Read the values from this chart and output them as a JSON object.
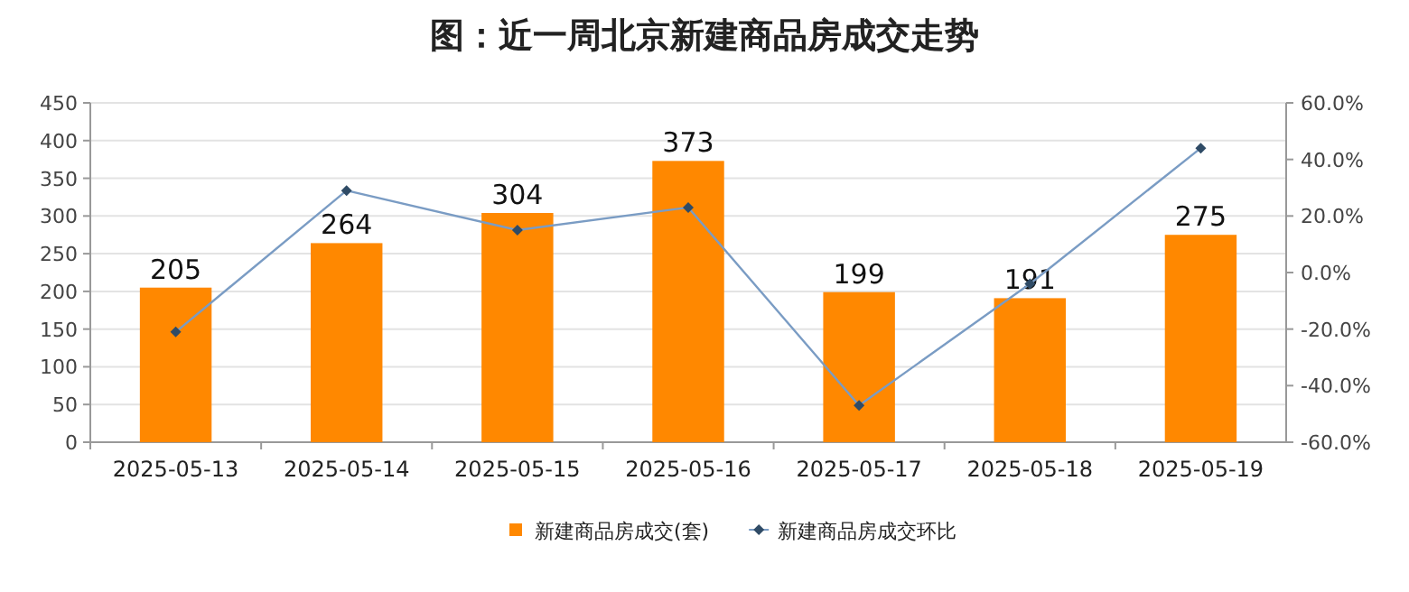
{
  "chart_data": {
    "type": "bar",
    "title": "图：近一周北京新建商品房成交走势",
    "categories": [
      "2025-05-13",
      "2025-05-14",
      "2025-05-15",
      "2025-05-16",
      "2025-05-17",
      "2025-05-18",
      "2025-05-19"
    ],
    "series": [
      {
        "name": "新建商品房成交(套)",
        "color": "#ff8800",
        "values": [
          205,
          264,
          304,
          373,
          199,
          191,
          275
        ],
        "value_labels": [
          "205",
          "264",
          "304",
          "373",
          "199",
          "191",
          "275"
        ]
      },
      {
        "name": "新建商品房成交环比",
        "type": "line",
        "axis": "y2",
        "color": "#7a9cc4",
        "marker": "diamond",
        "values": [
          -21,
          29,
          15,
          23,
          -47,
          -4,
          44
        ]
      }
    ],
    "ylim": [
      0,
      450
    ],
    "yticks": [
      0,
      50,
      100,
      150,
      200,
      250,
      300,
      350,
      400,
      450
    ],
    "y2lim": [
      -60,
      60
    ],
    "y2ticks": [
      {
        "value": -60,
        "label": "-60.0%"
      },
      {
        "value": -40,
        "label": "-40.0%"
      },
      {
        "value": -20,
        "label": "-20.0%"
      },
      {
        "value": 0,
        "label": "0.0%"
      },
      {
        "value": 20,
        "label": "20.0%"
      },
      {
        "value": 40,
        "label": "40.0%"
      },
      {
        "value": 60,
        "label": "60.0%"
      }
    ],
    "grid": "y",
    "legend": "bottom"
  }
}
